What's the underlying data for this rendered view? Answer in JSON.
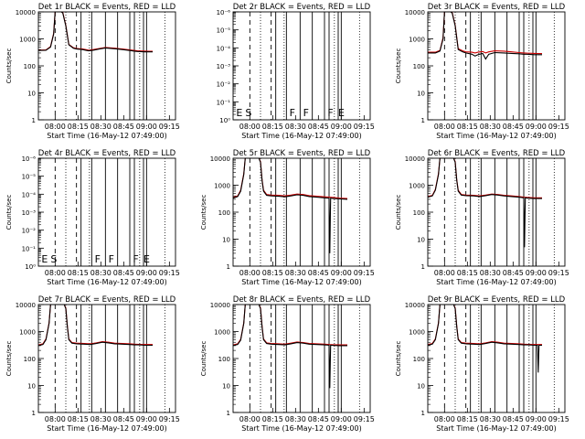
{
  "chart_data": [
    {
      "type": "line",
      "title": "Det 1r BLACK = Events, RED = LLD",
      "xlabel": "Start Time (16-May-12 07:49:00)",
      "ylabel": "Counts/sec",
      "yscale": "log",
      "ylim": [
        1,
        10000
      ],
      "ytick_labels": [
        "1",
        "10",
        "100",
        "1000",
        "10000"
      ],
      "xtick_labels": [
        "08:00",
        "08:15",
        "08:30",
        "08:45",
        "09:00",
        "09:15"
      ],
      "flags": [],
      "series": [
        {
          "color": "#000000",
          "x": [
            0,
            5,
            8,
            10,
            11,
            14,
            15,
            16,
            18,
            20,
            23,
            25,
            29,
            31,
            33,
            36,
            40,
            44,
            50,
            55,
            60,
            63,
            65,
            70,
            73,
            75
          ],
          "y": [
            370,
            380,
            500,
            1500,
            10000,
            10000,
            10000,
            9000,
            3000,
            600,
            450,
            420,
            400,
            380,
            360,
            380,
            420,
            460,
            430,
            400,
            370,
            350,
            340,
            330,
            330,
            330
          ]
        },
        {
          "color": "#cc0000",
          "x": [
            0,
            5,
            8,
            10,
            11,
            14,
            15,
            16,
            18,
            20,
            23,
            25,
            29,
            31,
            33,
            36,
            40,
            44,
            50,
            55,
            60,
            63,
            65,
            70,
            73,
            75
          ],
          "y": [
            380,
            390,
            520,
            1600,
            10000,
            10000,
            10000,
            9500,
            3200,
            620,
            470,
            440,
            420,
            400,
            380,
            400,
            440,
            480,
            450,
            420,
            390,
            370,
            360,
            350,
            345,
            345
          ]
        }
      ]
    },
    {
      "type": "line",
      "title": "Det 2r BLACK = Events, RED = LLD",
      "xlabel": "Start Time (16-May-12 07:49:00)",
      "ylabel": "",
      "yscale": "log",
      "ylim": [
        1,
        1000000
      ],
      "ytick_labels": [
        "10⁰",
        "10⁻¹",
        "10⁻²",
        "10⁻³",
        "10⁻⁴",
        "10⁻⁵",
        "10⁻⁶"
      ],
      "xtick_labels": [
        "08:00",
        "08:15",
        "08:30",
        "08:45",
        "09:00",
        "09:15"
      ],
      "flags": [
        "E",
        "S",
        "F",
        "F",
        "F",
        "E"
      ],
      "series": []
    },
    {
      "type": "line",
      "title": "Det 3r BLACK = Events, RED = LLD",
      "xlabel": "Start Time (16-May-12 07:49:00)",
      "ylabel": "Counts/sec",
      "yscale": "log",
      "ylim": [
        1,
        10000
      ],
      "ytick_labels": [
        "1",
        "10",
        "100",
        "1000",
        "10000"
      ],
      "xtick_labels": [
        "08:00",
        "08:15",
        "08:30",
        "08:45",
        "09:00",
        "09:15"
      ],
      "flags": [],
      "series": [
        {
          "color": "#000000",
          "x": [
            0,
            5,
            8,
            10,
            11,
            14,
            15,
            16,
            18,
            20,
            23,
            25,
            29,
            31,
            33,
            36,
            38,
            40,
            44,
            50,
            55,
            60,
            63,
            65,
            70,
            73,
            75
          ],
          "y": [
            300,
            300,
            350,
            1000,
            10000,
            10000,
            10000,
            9000,
            3000,
            400,
            330,
            300,
            270,
            230,
            260,
            290,
            180,
            270,
            310,
            300,
            290,
            280,
            270,
            270,
            260,
            260,
            260
          ]
        },
        {
          "color": "#cc0000",
          "x": [
            0,
            5,
            8,
            10,
            11,
            14,
            15,
            16,
            18,
            20,
            23,
            25,
            29,
            31,
            33,
            36,
            38,
            40,
            44,
            50,
            55,
            60,
            63,
            65,
            70,
            73,
            75
          ],
          "y": [
            320,
            320,
            370,
            1100,
            10000,
            10000,
            10000,
            9500,
            3200,
            430,
            360,
            330,
            320,
            300,
            320,
            340,
            300,
            330,
            360,
            350,
            330,
            310,
            300,
            295,
            290,
            285,
            285
          ]
        }
      ]
    },
    {
      "type": "line",
      "title": "Det 4r BLACK = Events, RED = LLD",
      "xlabel": "Start Time (16-May-12 07:49:00)",
      "ylabel": "Counts/sec",
      "yscale": "log",
      "ylim": [
        1,
        1000000
      ],
      "ytick_labels": [
        "10⁰",
        "10⁻¹",
        "10⁻²",
        "10⁻³",
        "10⁻⁴",
        "10⁻⁵",
        "10⁻⁶"
      ],
      "xtick_labels": [
        "08:00",
        "08:15",
        "08:30",
        "08:45",
        "09:00",
        "09:15"
      ],
      "flags": [
        "E",
        "S",
        "F",
        "F",
        "F",
        "E"
      ],
      "series": []
    },
    {
      "type": "line",
      "title": "Det 5r BLACK = Events, RED = LLD",
      "xlabel": "Start Time (16-May-12 07:49:00)",
      "ylabel": "Counts/sec",
      "yscale": "log",
      "ylim": [
        1,
        10000
      ],
      "ytick_labels": [
        "1",
        "10",
        "100",
        "1000",
        "10000"
      ],
      "xtick_labels": [
        "08:00",
        "08:15",
        "08:30",
        "08:45",
        "09:00",
        "09:15"
      ],
      "flags": [],
      "series": [
        {
          "color": "#000000",
          "x": [
            0,
            3,
            5,
            7,
            8,
            10,
            12,
            15,
            17,
            18,
            19,
            20,
            22,
            25,
            30,
            34,
            38,
            42,
            46,
            50,
            55,
            60,
            63,
            63.5,
            64,
            66,
            70,
            75
          ],
          "y": [
            330,
            380,
            600,
            2500,
            10000,
            10000,
            10000,
            10000,
            10000,
            7000,
            1500,
            600,
            420,
            400,
            390,
            370,
            400,
            440,
            420,
            380,
            360,
            340,
            330,
            3,
            330,
            320,
            310,
            300
          ]
        },
        {
          "color": "#cc0000",
          "x": [
            0,
            3,
            5,
            7,
            8,
            10,
            12,
            15,
            17,
            18,
            19,
            20,
            22,
            25,
            30,
            34,
            38,
            42,
            46,
            50,
            55,
            60,
            63,
            66,
            70,
            75
          ],
          "y": [
            350,
            400,
            650,
            2700,
            10000,
            10000,
            10000,
            10000,
            10000,
            7500,
            1600,
            650,
            450,
            430,
            420,
            400,
            430,
            470,
            450,
            410,
            390,
            370,
            360,
            350,
            330,
            320
          ]
        }
      ]
    },
    {
      "type": "line",
      "title": "Det 6r BLACK = Events, RED = LLD",
      "xlabel": "Start Time (16-May-12 07:49:00)",
      "ylabel": "Counts/sec",
      "yscale": "log",
      "ylim": [
        1,
        10000
      ],
      "ytick_labels": [
        "1",
        "10",
        "100",
        "1000",
        "10000"
      ],
      "xtick_labels": [
        "08:00",
        "08:15",
        "08:30",
        "08:45",
        "09:00",
        "09:15"
      ],
      "flags": [],
      "series": [
        {
          "color": "#000000",
          "x": [
            0,
            3,
            5,
            7,
            8,
            10,
            12,
            15,
            17,
            18,
            19,
            20,
            22,
            25,
            30,
            34,
            38,
            42,
            46,
            50,
            55,
            60,
            63,
            63.5,
            64,
            66,
            70,
            75
          ],
          "y": [
            360,
            400,
            650,
            2500,
            10000,
            10000,
            10000,
            10000,
            10000,
            7000,
            1500,
            600,
            430,
            410,
            400,
            380,
            410,
            450,
            430,
            400,
            380,
            360,
            340,
            5,
            340,
            330,
            320,
            320
          ]
        },
        {
          "color": "#cc0000",
          "x": [
            0,
            3,
            5,
            7,
            8,
            10,
            12,
            15,
            17,
            18,
            19,
            20,
            22,
            25,
            30,
            34,
            38,
            42,
            46,
            50,
            55,
            60,
            63,
            66,
            70,
            75
          ],
          "y": [
            380,
            420,
            700,
            2700,
            10000,
            10000,
            10000,
            10000,
            10000,
            7500,
            1600,
            650,
            450,
            430,
            420,
            400,
            430,
            470,
            450,
            420,
            400,
            380,
            360,
            350,
            340,
            340
          ]
        }
      ]
    },
    {
      "type": "line",
      "title": "Det 7r BLACK = Events, RED = LLD",
      "xlabel": "Start Time (16-May-12 07:49:00)",
      "ylabel": "Counts/sec",
      "yscale": "log",
      "ylim": [
        1,
        10000
      ],
      "ytick_labels": [
        "1",
        "10",
        "100",
        "1000",
        "10000"
      ],
      "xtick_labels": [
        "08:00",
        "08:15",
        "08:30",
        "08:45",
        "09:00",
        "09:15"
      ],
      "flags": [],
      "series": [
        {
          "color": "#000000",
          "x": [
            0,
            3,
            5,
            7,
            8,
            10,
            12,
            15,
            17,
            18,
            19,
            20,
            22,
            25,
            30,
            34,
            38,
            42,
            46,
            50,
            55,
            60,
            63,
            66,
            70,
            75
          ],
          "y": [
            300,
            330,
            500,
            2000,
            10000,
            10000,
            10000,
            10000,
            10000,
            7000,
            1500,
            500,
            370,
            350,
            340,
            330,
            360,
            400,
            380,
            350,
            340,
            330,
            320,
            320,
            310,
            310
          ]
        },
        {
          "color": "#cc0000",
          "x": [
            0,
            3,
            5,
            7,
            8,
            10,
            12,
            15,
            17,
            18,
            19,
            20,
            22,
            25,
            30,
            34,
            38,
            42,
            46,
            50,
            55,
            60,
            63,
            66,
            70,
            75
          ],
          "y": [
            320,
            350,
            530,
            2100,
            10000,
            10000,
            10000,
            10000,
            10000,
            7500,
            1600,
            530,
            390,
            370,
            360,
            350,
            380,
            420,
            400,
            370,
            360,
            350,
            340,
            335,
            330,
            330
          ]
        }
      ]
    },
    {
      "type": "line",
      "title": "Det 8r BLACK = Events, RED = LLD",
      "xlabel": "Start Time (16-May-12 07:49:00)",
      "ylabel": "Counts/sec",
      "yscale": "log",
      "ylim": [
        1,
        10000
      ],
      "ytick_labels": [
        "1",
        "10",
        "100",
        "1000",
        "10000"
      ],
      "xtick_labels": [
        "08:00",
        "08:15",
        "08:30",
        "08:45",
        "09:00",
        "09:15"
      ],
      "flags": [],
      "series": [
        {
          "color": "#000000",
          "x": [
            0,
            3,
            5,
            7,
            8,
            10,
            12,
            15,
            17,
            18,
            19,
            20,
            22,
            25,
            30,
            34,
            38,
            42,
            46,
            50,
            55,
            60,
            63,
            63.5,
            64,
            66,
            70,
            75
          ],
          "y": [
            300,
            330,
            480,
            2000,
            10000,
            10000,
            10000,
            10000,
            10000,
            7000,
            1500,
            500,
            360,
            340,
            330,
            320,
            350,
            390,
            370,
            340,
            330,
            320,
            310,
            8,
            310,
            305,
            300,
            300
          ]
        },
        {
          "color": "#cc0000",
          "x": [
            0,
            3,
            5,
            7,
            8,
            10,
            12,
            15,
            17,
            18,
            19,
            20,
            22,
            25,
            30,
            34,
            38,
            42,
            46,
            50,
            55,
            60,
            63,
            66,
            70,
            75
          ],
          "y": [
            320,
            350,
            510,
            2100,
            10000,
            10000,
            10000,
            10000,
            10000,
            7500,
            1600,
            530,
            380,
            360,
            350,
            340,
            370,
            410,
            390,
            360,
            350,
            340,
            330,
            325,
            320,
            320
          ]
        }
      ]
    },
    {
      "type": "line",
      "title": "Det 9r BLACK = Events, RED = LLD",
      "xlabel": "Start Time (16-May-12 07:49:00)",
      "ylabel": "Counts/sec",
      "yscale": "log",
      "ylim": [
        1,
        10000
      ],
      "ytick_labels": [
        "1",
        "10",
        "100",
        "1000",
        "10000"
      ],
      "xtick_labels": [
        "08:00",
        "08:15",
        "08:30",
        "08:45",
        "09:00",
        "09:15"
      ],
      "flags": [],
      "series": [
        {
          "color": "#000000",
          "x": [
            0,
            3,
            5,
            7,
            8,
            10,
            12,
            15,
            17,
            18,
            19,
            20,
            22,
            25,
            30,
            34,
            38,
            42,
            46,
            50,
            55,
            60,
            63,
            66,
            70,
            72,
            72.5,
            73,
            75
          ],
          "y": [
            310,
            340,
            500,
            2000,
            10000,
            10000,
            10000,
            10000,
            10000,
            7000,
            1500,
            500,
            370,
            350,
            340,
            330,
            360,
            400,
            380,
            350,
            340,
            330,
            320,
            320,
            310,
            310,
            30,
            310,
            310
          ]
        },
        {
          "color": "#cc0000",
          "x": [
            0,
            3,
            5,
            7,
            8,
            10,
            12,
            15,
            17,
            18,
            19,
            20,
            22,
            25,
            30,
            34,
            38,
            42,
            46,
            50,
            55,
            60,
            63,
            66,
            70,
            75
          ],
          "y": [
            330,
            360,
            530,
            2100,
            10000,
            10000,
            10000,
            10000,
            10000,
            7500,
            1600,
            530,
            390,
            370,
            360,
            350,
            380,
            420,
            400,
            370,
            360,
            350,
            340,
            335,
            330,
            330
          ]
        }
      ]
    }
  ]
}
